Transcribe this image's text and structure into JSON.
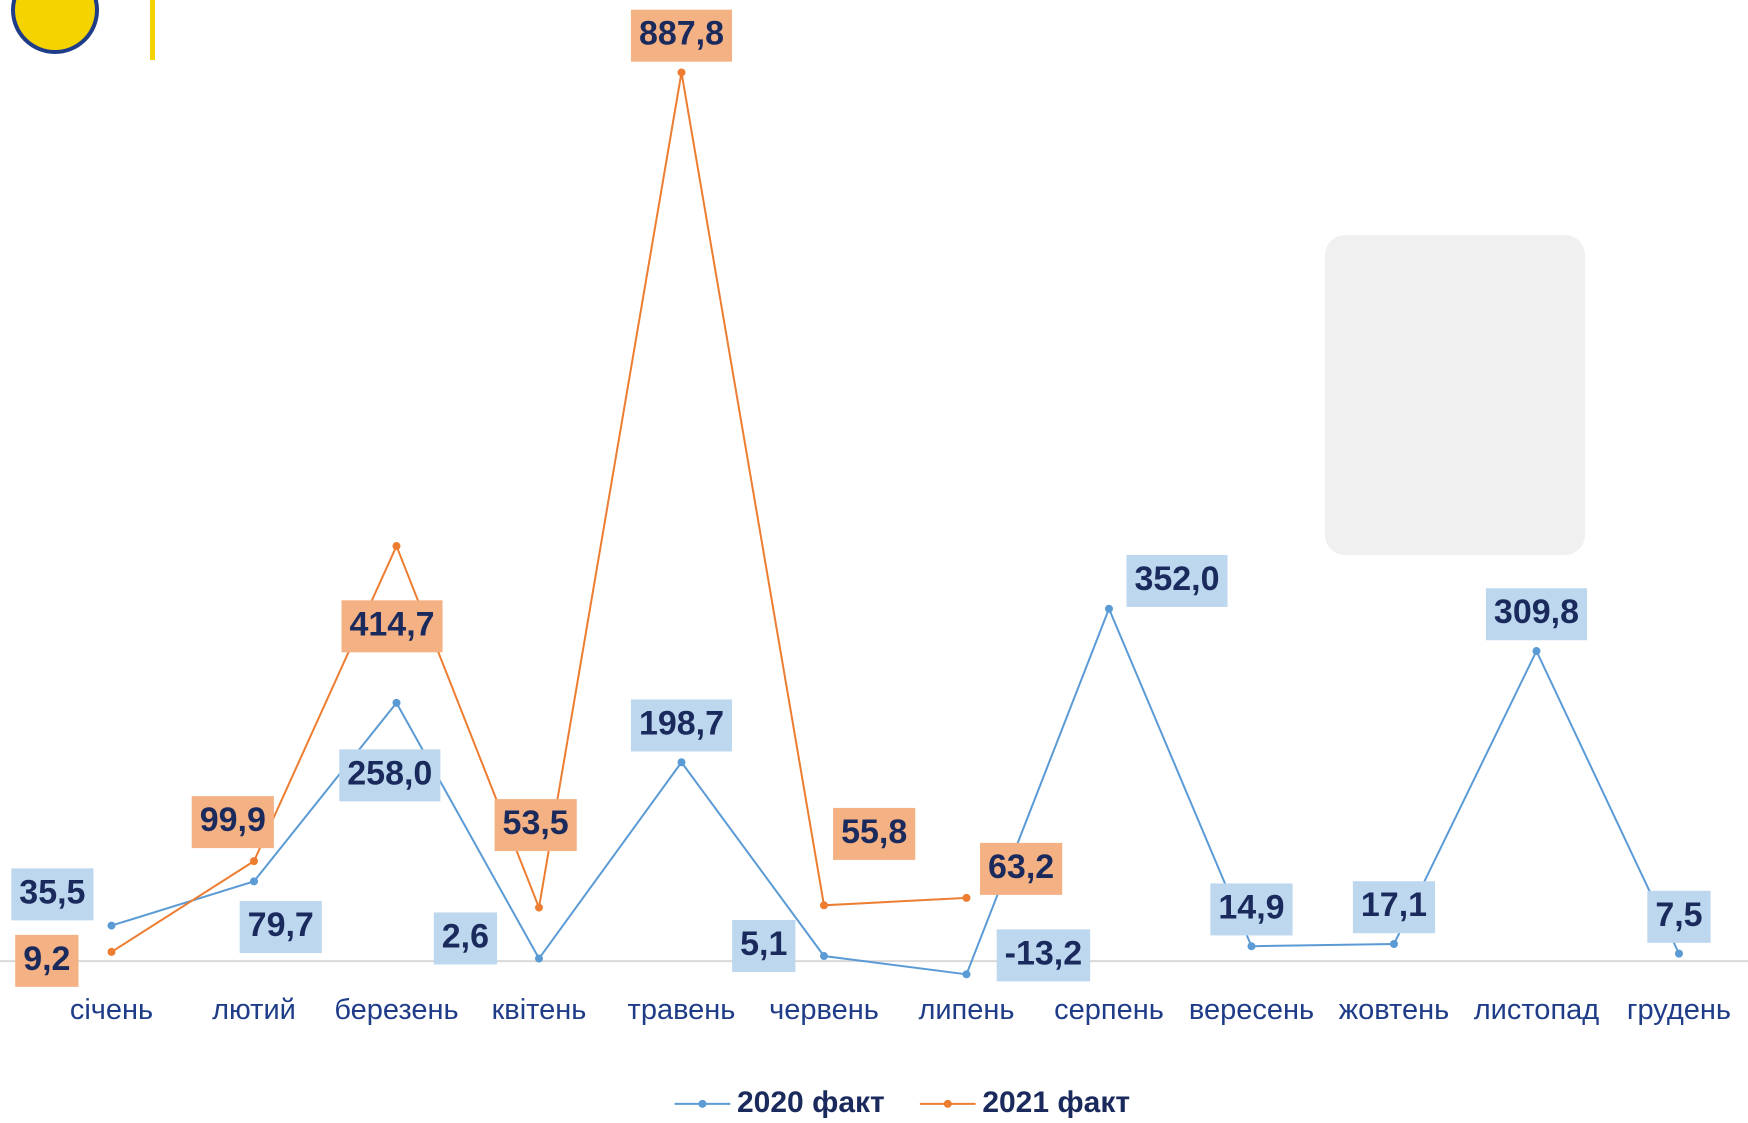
{
  "chart_data": {
    "type": "line",
    "categories": [
      "січень",
      "лютий",
      "березень",
      "квітень",
      "травень",
      "червень",
      "липень",
      "серпень",
      "вересень",
      "жовтень",
      "листопад",
      "грудень"
    ],
    "series": [
      {
        "name": "2020 факт",
        "color": "#5b9bd5",
        "values": [
          35.5,
          79.7,
          258.0,
          2.6,
          198.7,
          5.1,
          -13.2,
          352.0,
          14.9,
          17.1,
          309.8,
          7.5
        ],
        "value_labels": [
          "35,5",
          "79,7",
          "258,0",
          "2,6",
          "198,7",
          "5,1",
          "-13,2",
          "352,0",
          "14,9",
          "17,1",
          "309,8",
          "7,5"
        ]
      },
      {
        "name": "2021 факт",
        "color": "#ed7d31",
        "values": [
          9.2,
          99.9,
          414.7,
          53.5,
          887.8,
          55.8,
          63.2,
          null,
          null,
          null,
          null,
          null
        ],
        "value_labels": [
          "9,2",
          "99,9",
          "414,7",
          "53,5",
          "887,8",
          "55,8",
          "63,2",
          null,
          null,
          null,
          null,
          null
        ]
      }
    ]
  }
}
